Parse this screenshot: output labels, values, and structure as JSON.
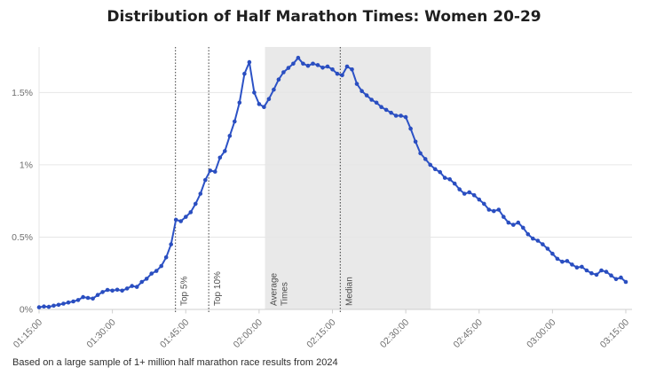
{
  "title": "Distribution of Half Marathon Times: Women 20-29",
  "footer": "Based on a large sample of 1+ million half marathon race results from 2024",
  "colors": {
    "background": "#ffffff",
    "line": "#2c52c6",
    "point": "#2a4ec0",
    "band": "#e9e9e9",
    "grid": "#e6e6e6",
    "axis": "#cfcfcf",
    "tick_text": "#6e6e6e",
    "annotation_line": "#3c3c3c",
    "annotation_text": "#4c4c4c",
    "title_text": "#1f1f1f",
    "footer_text": "#2e2e2e"
  },
  "chart_data": {
    "type": "line",
    "title": "Distribution of Half Marathon Times: Women 20-29",
    "subtitle": "Based on a large sample of 1+ million half marathon race results from 2024",
    "xlabel": "",
    "ylabel": "",
    "grid": true,
    "legend": false,
    "marker": "circle",
    "x_axis": {
      "unit": "finish time H:MM:SS",
      "start_minutes": 75,
      "interval_minutes": 1,
      "tick_minutes": [
        75,
        90,
        105,
        120,
        135,
        150,
        165,
        180,
        195
      ],
      "tick_labels": [
        "01:15:00",
        "01:30:00",
        "01:45:00",
        "02:00:00",
        "02:15:00",
        "02:30:00",
        "02:45:00",
        "03:00:00",
        "03:15:00"
      ]
    },
    "y_axis": {
      "unit": "percent of runners",
      "max": 1.815,
      "tick_values": [
        0,
        0.5,
        1,
        1.5
      ],
      "tick_labels": [
        "0%",
        "0.5%",
        "1%",
        "1.5%"
      ]
    },
    "values_pct": [
      0.015,
      0.02,
      0.018,
      0.026,
      0.032,
      0.04,
      0.048,
      0.055,
      0.065,
      0.085,
      0.08,
      0.075,
      0.1,
      0.12,
      0.135,
      0.13,
      0.136,
      0.13,
      0.145,
      0.162,
      0.156,
      0.19,
      0.212,
      0.248,
      0.266,
      0.3,
      0.36,
      0.45,
      0.62,
      0.61,
      0.64,
      0.672,
      0.73,
      0.8,
      0.895,
      0.96,
      0.953,
      1.05,
      1.095,
      1.2,
      1.3,
      1.43,
      1.63,
      1.71,
      1.5,
      1.42,
      1.4,
      1.455,
      1.52,
      1.59,
      1.64,
      1.67,
      1.7,
      1.74,
      1.7,
      1.685,
      1.7,
      1.69,
      1.672,
      1.68,
      1.66,
      1.63,
      1.62,
      1.68,
      1.66,
      1.56,
      1.51,
      1.48,
      1.45,
      1.43,
      1.4,
      1.38,
      1.36,
      1.34,
      1.34,
      1.33,
      1.25,
      1.16,
      1.08,
      1.04,
      1.0,
      0.97,
      0.95,
      0.91,
      0.9,
      0.87,
      0.83,
      0.8,
      0.81,
      0.79,
      0.76,
      0.73,
      0.69,
      0.68,
      0.69,
      0.64,
      0.6,
      0.585,
      0.6,
      0.565,
      0.52,
      0.49,
      0.475,
      0.45,
      0.42,
      0.385,
      0.35,
      0.33,
      0.335,
      0.31,
      0.29,
      0.295,
      0.27,
      0.25,
      0.24,
      0.27,
      0.26,
      0.235,
      0.21,
      0.22,
      0.19
    ],
    "annotations": {
      "lines": [
        {
          "label": "Top 5%",
          "x_minutes": 102.9
        },
        {
          "label": "Top 10%",
          "x_minutes": 109.7
        },
        {
          "label": "Median",
          "x_minutes": 136.6
        }
      ],
      "band": {
        "label": [
          "Average",
          "Times"
        ],
        "x_start_minutes": 121.2,
        "x_end_minutes": 155.1
      }
    }
  }
}
